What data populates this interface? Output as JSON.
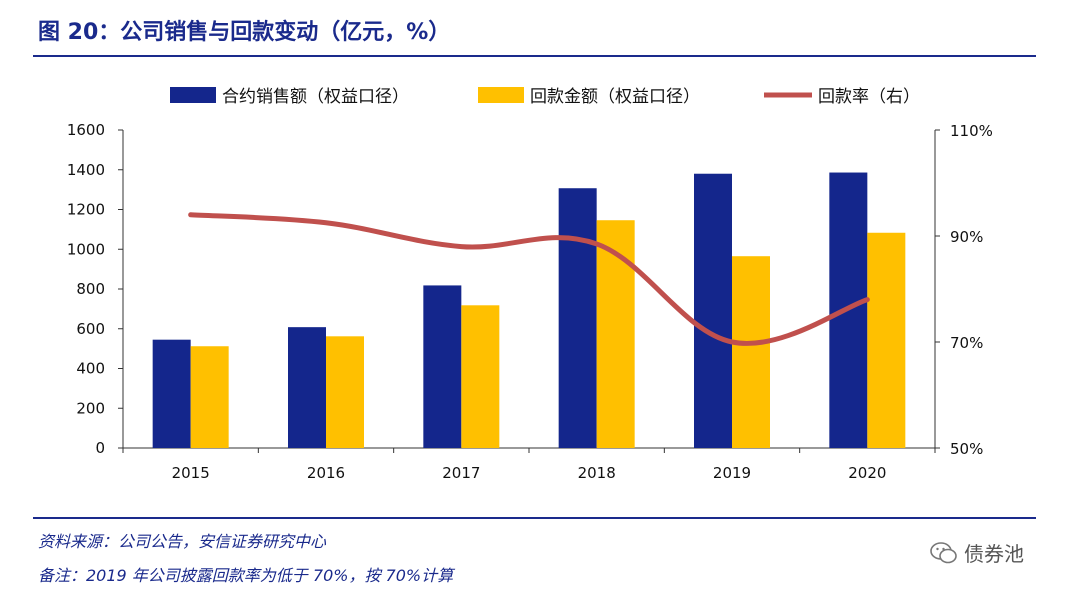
{
  "header": {
    "title": "图 20：公司销售与回款变动（亿元，%）"
  },
  "footer": {
    "source": "资料来源：公司公告，安信证券研究中心",
    "remark": "备注：2019 年公司披露回款率为低于 70%，按 70%计算",
    "watermark": "债券池"
  },
  "colors": {
    "sales": "#14268c",
    "collection": "#ffc000",
    "rate": "#c0504d",
    "accent": "#1a2a8c"
  },
  "chart_data": {
    "type": "bar",
    "categories": [
      "2015",
      "2016",
      "2017",
      "2018",
      "2019",
      "2020"
    ],
    "series": [
      {
        "name": "合约销售额（权益口径）",
        "type": "bar",
        "axis": "left",
        "values": [
          545,
          608,
          818,
          1307,
          1380,
          1386
        ]
      },
      {
        "name": "回款金额（权益口径）",
        "type": "bar",
        "axis": "left",
        "values": [
          512,
          562,
          718,
          1146,
          965,
          1083
        ]
      },
      {
        "name": "回款率（右）",
        "type": "line",
        "axis": "right",
        "values": [
          94,
          92.5,
          88,
          88.5,
          70,
          78
        ]
      }
    ],
    "left_axis": {
      "ylim": [
        0,
        1600
      ],
      "ticks": [
        "0",
        "200",
        "400",
        "600",
        "800",
        "1000",
        "1200",
        "1400",
        "1600"
      ]
    },
    "right_axis": {
      "ylim": [
        50,
        110
      ],
      "ticks": [
        "50%",
        "70%",
        "90%",
        "110%"
      ]
    },
    "legend_position": "top"
  }
}
